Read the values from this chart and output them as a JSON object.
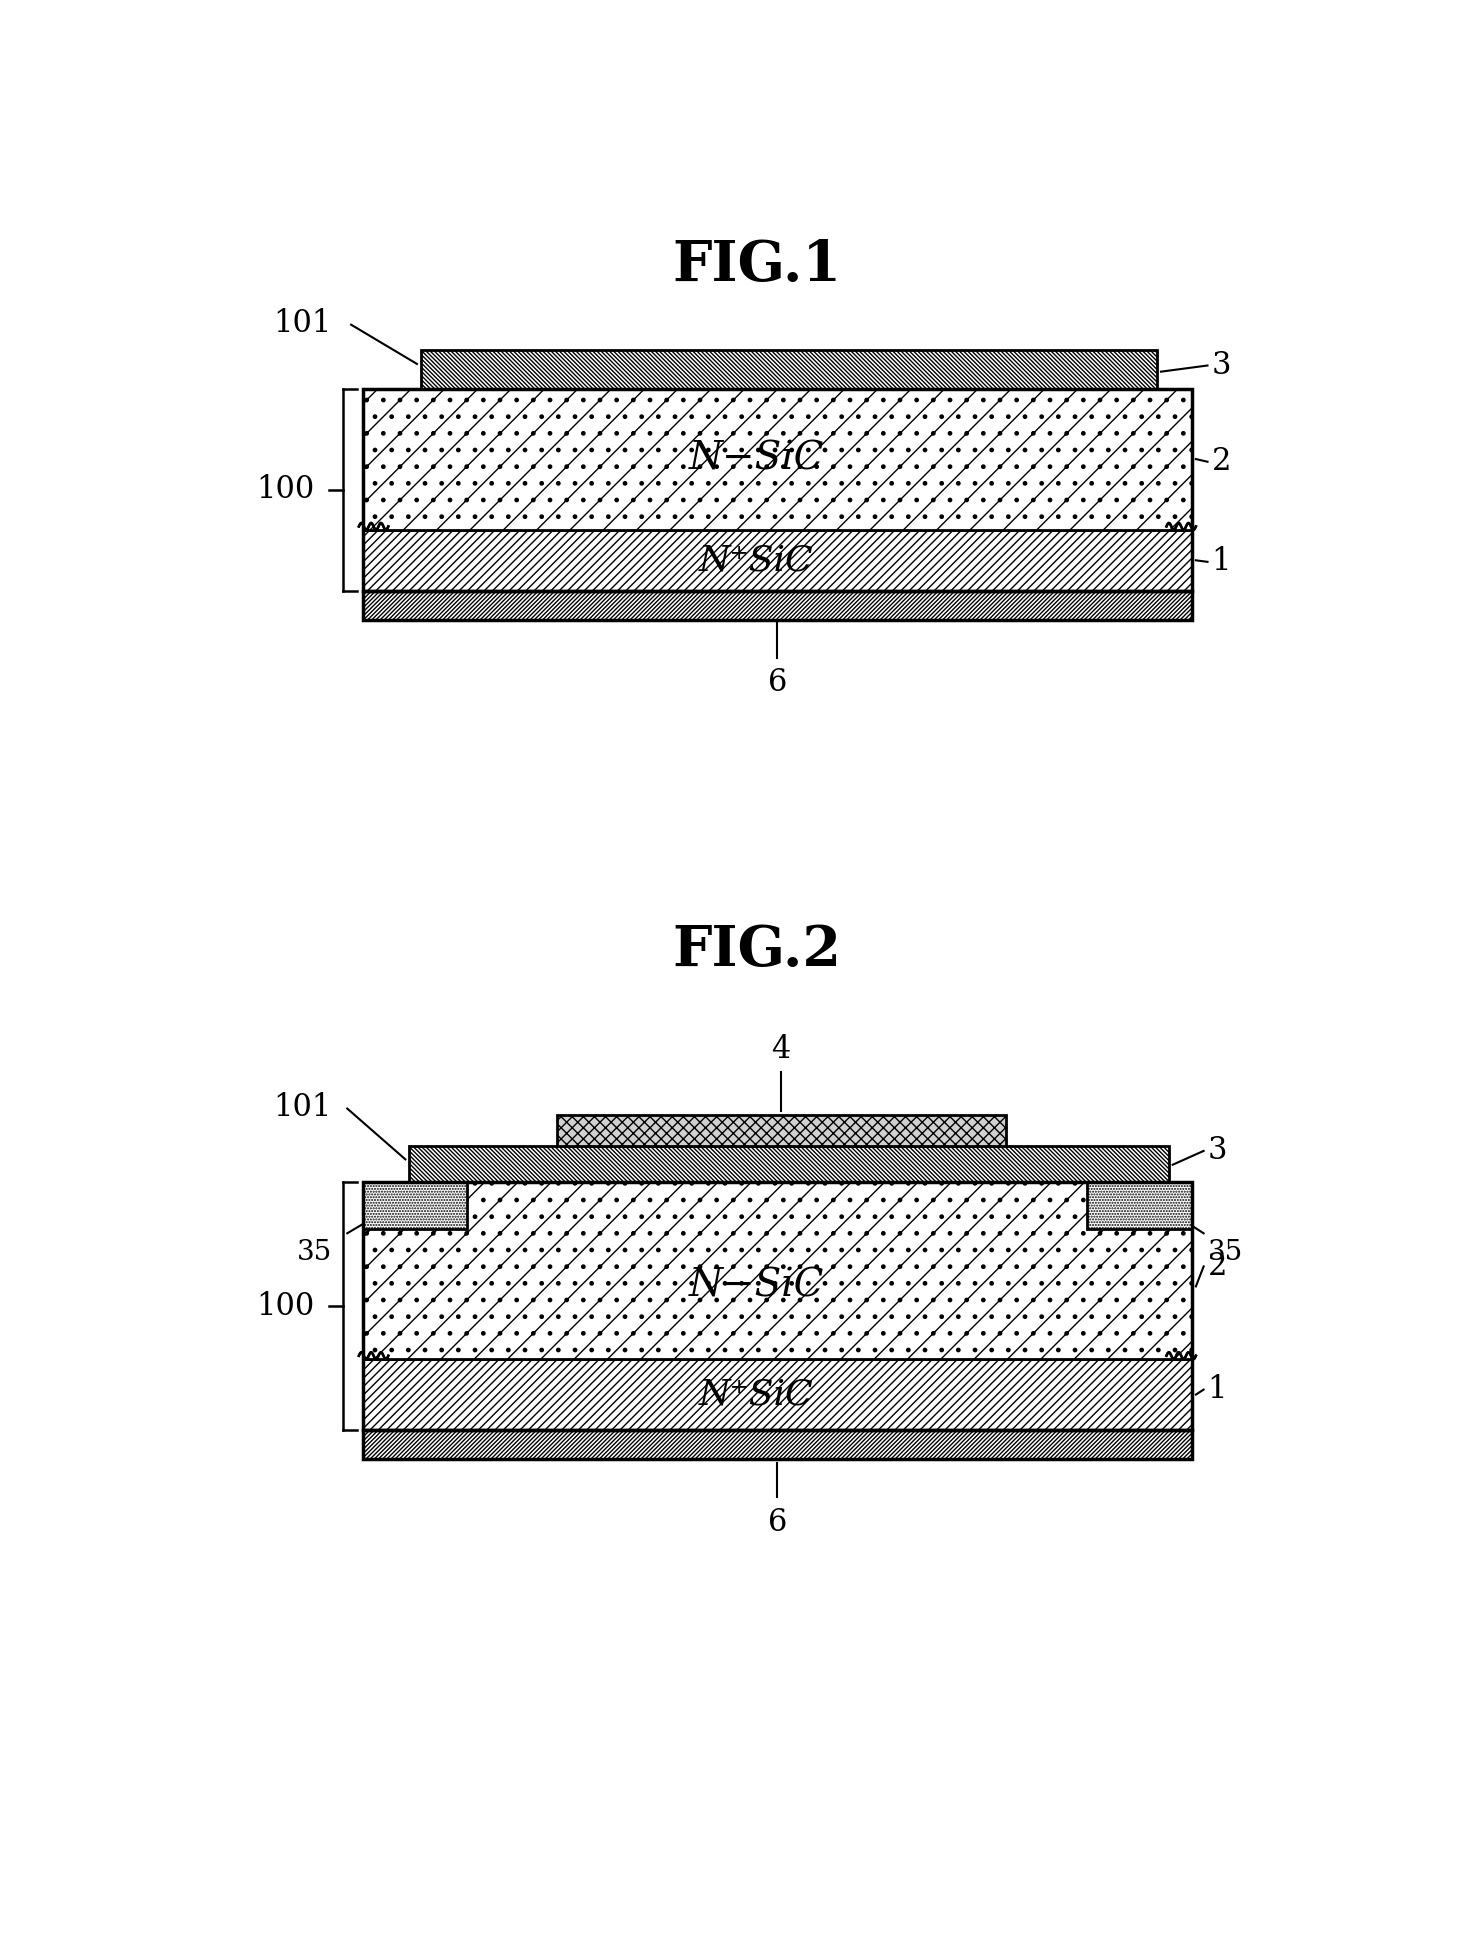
{
  "fig1_title": "FIG.1",
  "fig2_title": "FIG.2",
  "bg_color": "#ffffff",
  "label_101_fig1": "101",
  "label_3_fig1": "3",
  "label_2_fig1": "2",
  "label_1_fig1": "1",
  "label_100_fig1": "100",
  "label_6_fig1": "6",
  "label_nsic": "N−SiC",
  "label_npsic": "N⁺SiC",
  "label_101_fig2": "101",
  "label_3_fig2": "3",
  "label_2_fig2": "2",
  "label_1_fig2": "1",
  "label_100_fig2": "100",
  "label_6_fig2": "6",
  "label_4_fig2": "4",
  "label_35_fig2_left": "35",
  "label_35_fig2_right": "35"
}
